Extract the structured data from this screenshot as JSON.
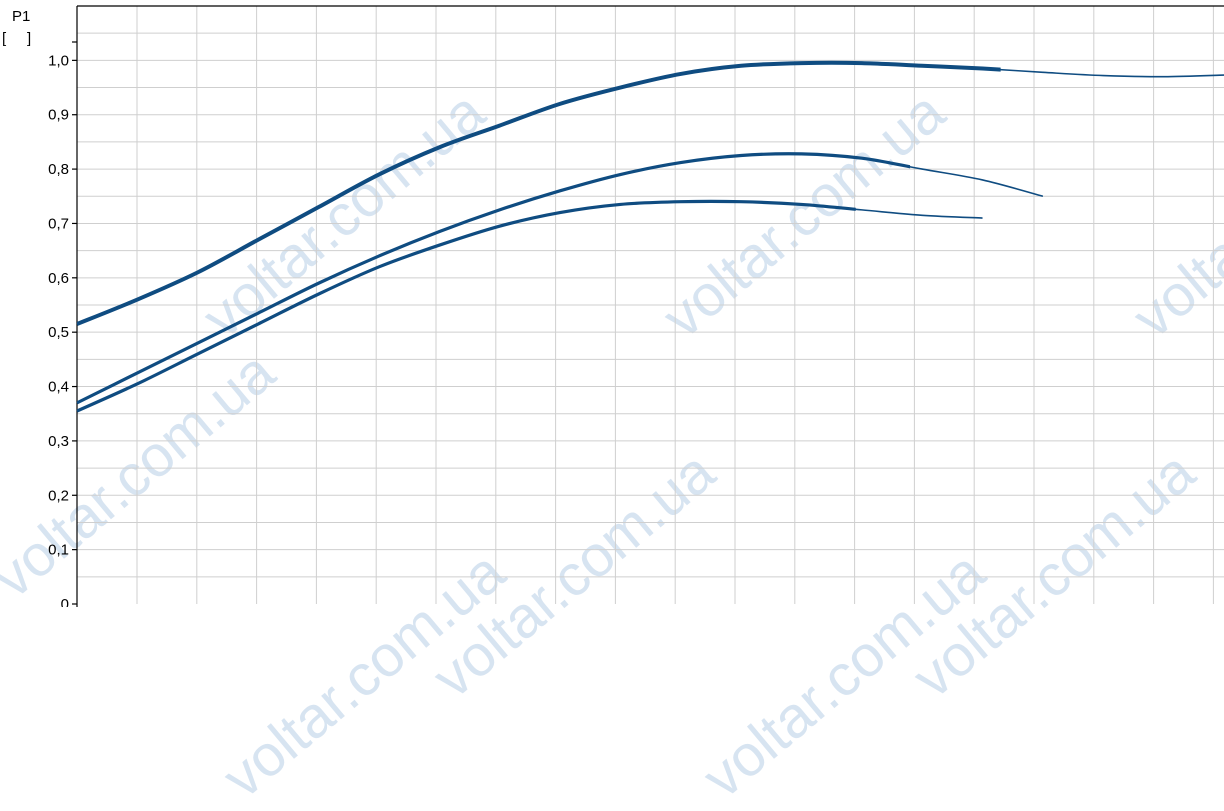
{
  "chart_data": {
    "type": "line",
    "title": "",
    "ylabel": "P1",
    "yunit": "[     ]",
    "xlabel": "",
    "ylim": [
      0,
      1.1
    ],
    "xlim": [
      0,
      19
    ],
    "grid": true,
    "ytick_labels": [
      "0",
      "0,1",
      "0,2",
      "0,3",
      "0,4",
      "0,5",
      "0,6",
      "0,7",
      "0,8",
      "0,9",
      "1,0"
    ],
    "yticks": [
      0,
      0.1,
      0.2,
      0.3,
      0.4,
      0.5,
      0.6,
      0.7,
      0.8,
      0.9,
      1.0
    ],
    "color": "#0f4c81",
    "series": [
      {
        "x": [
          0,
          1,
          2,
          3,
          4,
          5,
          6,
          7,
          8,
          9,
          10,
          11,
          12,
          13,
          14,
          15,
          16,
          17,
          18,
          19
        ],
        "values": [
          0.515,
          0.56,
          0.61,
          0.67,
          0.73,
          0.79,
          0.84,
          0.88,
          0.92,
          0.95,
          0.975,
          0.99,
          0.995,
          0.995,
          0.99,
          0.985,
          0.978,
          0.972,
          0.97,
          0.973
        ],
        "thick_until_x": 15.3
      },
      {
        "x": [
          0,
          1,
          2,
          3,
          4,
          5,
          6,
          7,
          8,
          9,
          10,
          11,
          12,
          13,
          14,
          15,
          16
        ],
        "values": [
          0.37,
          0.425,
          0.48,
          0.535,
          0.59,
          0.64,
          0.685,
          0.725,
          0.76,
          0.79,
          0.812,
          0.825,
          0.828,
          0.82,
          0.8,
          0.78,
          0.75
        ],
        "thick_until_x": 13.8
      },
      {
        "x": [
          0,
          1,
          2,
          3,
          4,
          5,
          6,
          7,
          8,
          9,
          10,
          11,
          12,
          13,
          14,
          15
        ],
        "values": [
          0.355,
          0.405,
          0.46,
          0.515,
          0.57,
          0.62,
          0.66,
          0.695,
          0.72,
          0.735,
          0.74,
          0.74,
          0.735,
          0.725,
          0.715,
          0.71
        ],
        "thick_until_x": 12.9
      }
    ]
  },
  "watermarks": [
    "voltar.com.ua",
    "voltar.com.ua",
    "voltar.com.ua",
    "voltar.com.ua",
    "voltar.com.ua",
    "voltar.com.ua",
    "voltar.com.ua",
    "voltar.com.ua"
  ]
}
